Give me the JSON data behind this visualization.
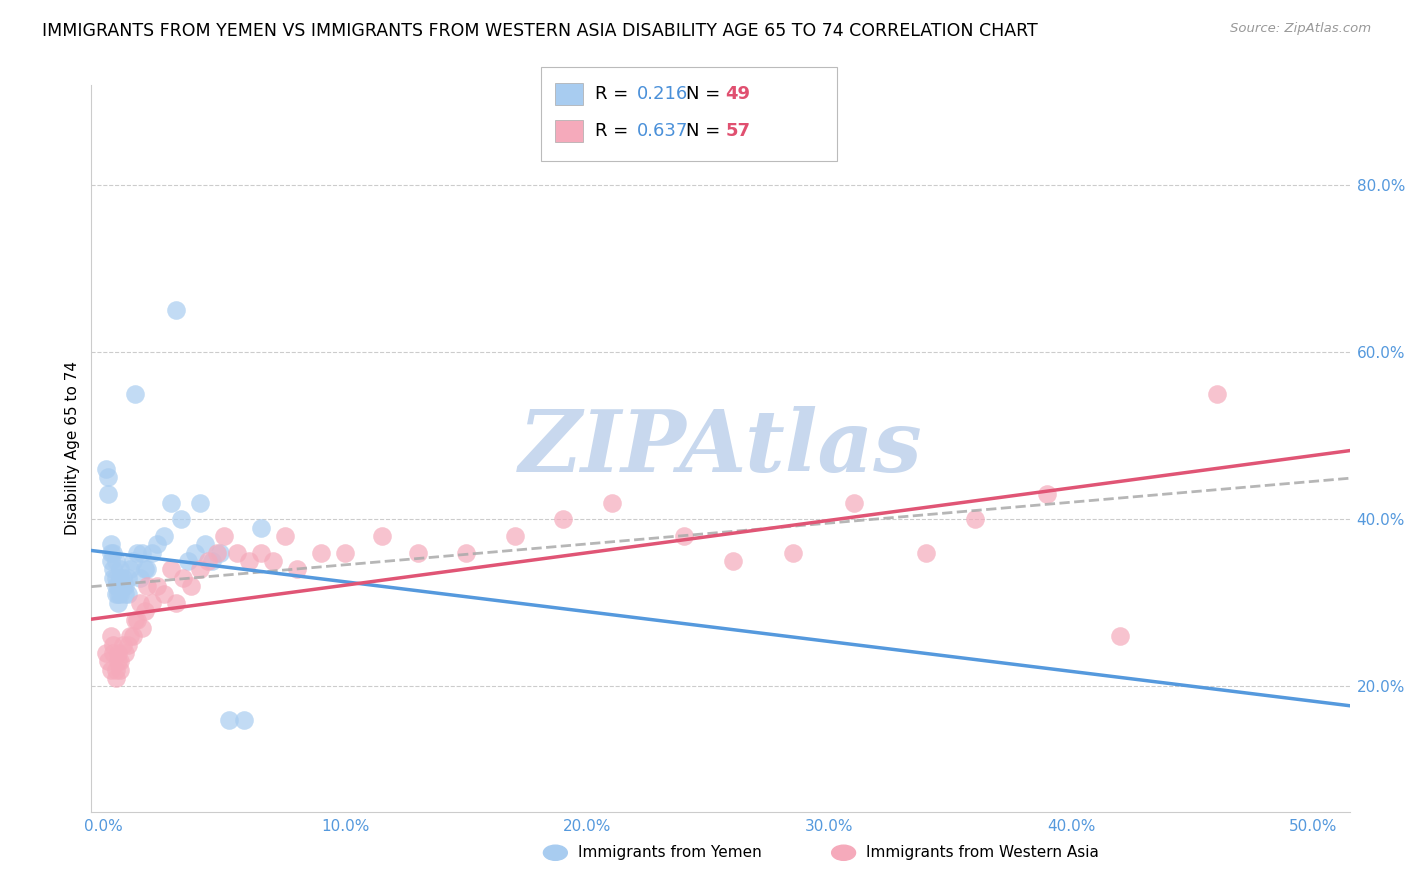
{
  "title": "IMMIGRANTS FROM YEMEN VS IMMIGRANTS FROM WESTERN ASIA DISABILITY AGE 65 TO 74 CORRELATION CHART",
  "source": "Source: ZipAtlas.com",
  "ylabel": "Disability Age 65 to 74",
  "x_tick_labels": [
    "0.0%",
    "10.0%",
    "20.0%",
    "30.0%",
    "40.0%",
    "50.0%"
  ],
  "x_tick_vals": [
    0.0,
    0.1,
    0.2,
    0.3,
    0.4,
    0.5
  ],
  "y_tick_labels": [
    "20.0%",
    "40.0%",
    "60.0%",
    "80.0%"
  ],
  "y_tick_vals": [
    0.2,
    0.4,
    0.6,
    0.8
  ],
  "ylim": [
    0.05,
    0.92
  ],
  "xlim": [
    -0.005,
    0.515
  ],
  "series1_name": "Immigrants from Yemen",
  "series1_color": "#A8CCF0",
  "series1_line_color": "#5599DD",
  "series1_R": "0.216",
  "series1_N": "49",
  "series2_name": "Immigrants from Western Asia",
  "series2_color": "#F5AABB",
  "series2_line_color": "#E05575",
  "series2_R": "0.637",
  "series2_N": "57",
  "R_color": "#4A90D9",
  "N_color": "#E05070",
  "watermark": "ZIPAtlas",
  "watermark_color": "#C8D8EE",
  "background_color": "#FFFFFF",
  "grid_color": "#CCCCCC",
  "tick_color": "#5599DD",
  "scatter1_x": [
    0.001,
    0.002,
    0.002,
    0.003,
    0.003,
    0.003,
    0.004,
    0.004,
    0.004,
    0.005,
    0.005,
    0.005,
    0.005,
    0.006,
    0.006,
    0.006,
    0.007,
    0.007,
    0.007,
    0.007,
    0.008,
    0.008,
    0.009,
    0.009,
    0.01,
    0.01,
    0.011,
    0.012,
    0.013,
    0.014,
    0.015,
    0.016,
    0.017,
    0.018,
    0.02,
    0.022,
    0.025,
    0.028,
    0.03,
    0.032,
    0.035,
    0.038,
    0.04,
    0.042,
    0.045,
    0.048,
    0.052,
    0.058,
    0.065
  ],
  "scatter1_y": [
    0.46,
    0.43,
    0.45,
    0.36,
    0.37,
    0.35,
    0.36,
    0.33,
    0.34,
    0.35,
    0.33,
    0.32,
    0.31,
    0.3,
    0.31,
    0.32,
    0.33,
    0.32,
    0.34,
    0.31,
    0.33,
    0.32,
    0.32,
    0.31,
    0.33,
    0.31,
    0.34,
    0.35,
    0.55,
    0.36,
    0.33,
    0.36,
    0.34,
    0.34,
    0.36,
    0.37,
    0.38,
    0.42,
    0.65,
    0.4,
    0.35,
    0.36,
    0.42,
    0.37,
    0.35,
    0.36,
    0.16,
    0.16,
    0.39
  ],
  "scatter2_x": [
    0.001,
    0.002,
    0.003,
    0.003,
    0.004,
    0.004,
    0.005,
    0.005,
    0.006,
    0.006,
    0.007,
    0.007,
    0.008,
    0.009,
    0.01,
    0.011,
    0.012,
    0.013,
    0.014,
    0.015,
    0.016,
    0.017,
    0.018,
    0.02,
    0.022,
    0.025,
    0.028,
    0.03,
    0.033,
    0.036,
    0.04,
    0.043,
    0.047,
    0.05,
    0.055,
    0.06,
    0.065,
    0.07,
    0.075,
    0.08,
    0.09,
    0.1,
    0.115,
    0.13,
    0.15,
    0.17,
    0.19,
    0.21,
    0.24,
    0.26,
    0.285,
    0.31,
    0.34,
    0.36,
    0.39,
    0.42,
    0.46
  ],
  "scatter2_y": [
    0.24,
    0.23,
    0.26,
    0.22,
    0.25,
    0.24,
    0.22,
    0.21,
    0.24,
    0.23,
    0.22,
    0.23,
    0.25,
    0.24,
    0.25,
    0.26,
    0.26,
    0.28,
    0.28,
    0.3,
    0.27,
    0.29,
    0.32,
    0.3,
    0.32,
    0.31,
    0.34,
    0.3,
    0.33,
    0.32,
    0.34,
    0.35,
    0.36,
    0.38,
    0.36,
    0.35,
    0.36,
    0.35,
    0.38,
    0.34,
    0.36,
    0.36,
    0.38,
    0.36,
    0.36,
    0.38,
    0.4,
    0.42,
    0.38,
    0.35,
    0.36,
    0.42,
    0.36,
    0.4,
    0.43,
    0.26,
    0.55
  ]
}
